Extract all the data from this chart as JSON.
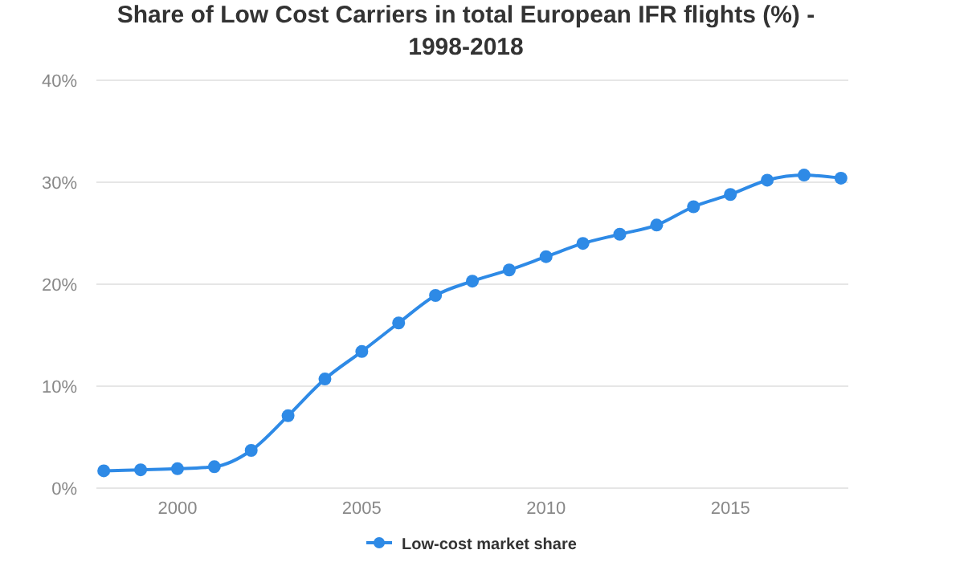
{
  "chart_data": {
    "type": "line",
    "title": "Share of Low Cost Carriers in total European IFR flights (%) - 1998-2018",
    "x": [
      1998,
      1999,
      2000,
      2001,
      2002,
      2003,
      2004,
      2005,
      2006,
      2007,
      2008,
      2009,
      2010,
      2011,
      2012,
      2013,
      2014,
      2015,
      2016,
      2017,
      2018
    ],
    "series": [
      {
        "name": "Low-cost market share",
        "color": "#2e8ae6",
        "values": [
          1.7,
          1.8,
          1.9,
          2.1,
          3.7,
          7.1,
          10.7,
          13.4,
          16.2,
          18.9,
          20.3,
          21.4,
          22.7,
          24.0,
          24.9,
          25.8,
          27.6,
          28.8,
          30.2,
          30.7,
          30.4
        ]
      }
    ],
    "xlim": [
      1997.8,
      2018.2
    ],
    "xticks": [
      2000,
      2005,
      2010,
      2015
    ],
    "ylim": [
      0,
      40
    ],
    "yticks": [
      {
        "value": 0,
        "label": "0%"
      },
      {
        "value": 10,
        "label": "10%"
      },
      {
        "value": 20,
        "label": "20%"
      },
      {
        "value": 30,
        "label": "30%"
      },
      {
        "value": 40,
        "label": "40%"
      }
    ],
    "grid": "y",
    "legend": "bottom",
    "marker": "circle",
    "line_style": "solid"
  }
}
